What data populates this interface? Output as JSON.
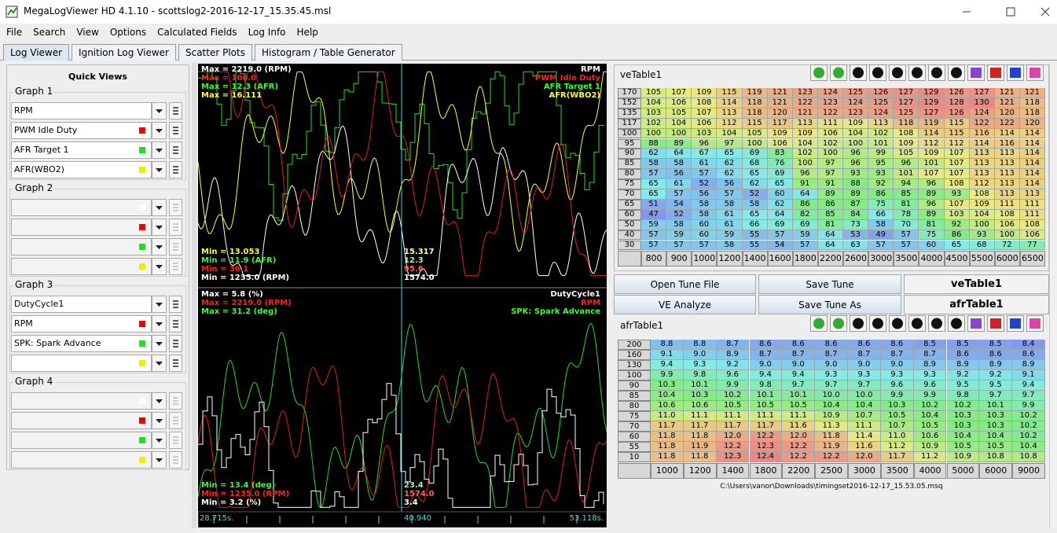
{
  "window": {
    "title": "MegaLogViewer HD 4.1.10 - scottslog2-2016-12-17_15.35.45.msl"
  },
  "menu": [
    "File",
    "Search",
    "View",
    "Options",
    "Calculated Fields",
    "Log Info",
    "Help"
  ],
  "tabs": [
    "Log Viewer",
    "Ignition Log Viewer",
    "Scatter Plots",
    "Histogram / Table Generator"
  ],
  "quick_views": {
    "title": "Quick Views",
    "groups": [
      {
        "title": "Graph 1",
        "fields": [
          "RPM",
          "PWM Idle Duty",
          "AFR Target 1",
          "AFR(WBO2)"
        ]
      },
      {
        "title": "Graph 2",
        "fields": []
      },
      {
        "title": "Graph 3",
        "fields": [
          "DutyCycle1",
          "RPM",
          "SPK: Spark Advance"
        ]
      },
      {
        "title": "Graph 4",
        "fields": []
      }
    ]
  },
  "graphs": [
    {
      "max": [
        {
          "text": "Max = 2219.0 (RPM)",
          "color": "#ffffff"
        },
        {
          "text": "Max = 100.0",
          "color": "#ff2020"
        },
        {
          "text": "Max = 12.3 (AFR)",
          "color": "#33ff33"
        },
        {
          "text": "Max = 16.111",
          "color": "#ffff33"
        }
      ],
      "legend": [
        {
          "text": "RPM",
          "color": "#ffffff"
        },
        {
          "text": "PWM Idle Duty",
          "color": "#ff2020"
        },
        {
          "text": "AFR Target 1",
          "color": "#33ff33"
        },
        {
          "text": "AFR(WBO2)",
          "color": "#ffff33"
        }
      ],
      "min": [
        {
          "text": "Min = 13.053",
          "color": "#ffff33"
        },
        {
          "text": "Min = 11.9 (AFR)",
          "color": "#33ff33"
        },
        {
          "text": "Min = 36.1",
          "color": "#ff2020"
        },
        {
          "text": "Min = 1235.0 (RPM)",
          "color": "#ffffff"
        }
      ],
      "cursor": [
        {
          "text": "15.317",
          "color": "#ffff99"
        },
        {
          "text": "12.3",
          "color": "#99ff99"
        },
        {
          "text": "95.6",
          "color": "#ff6060"
        },
        {
          "text": "1574.0",
          "color": "#ffffff"
        }
      ]
    },
    {
      "max": [
        {
          "text": "Max = 5.8 (%)",
          "color": "#ffffff"
        },
        {
          "text": "Max = 2219.0 (RPM)",
          "color": "#ff2020"
        },
        {
          "text": "Max = 31.2 (deg)",
          "color": "#33ff33"
        }
      ],
      "legend": [
        {
          "text": "DutyCycle1",
          "color": "#ffffff"
        },
        {
          "text": "RPM",
          "color": "#ff2020"
        },
        {
          "text": "SPK: Spark Advance",
          "color": "#33ff33"
        }
      ],
      "min": [
        {
          "text": "Min = 13.4 (deg)",
          "color": "#33ff33"
        },
        {
          "text": "Min = 1235.0 (RPM)",
          "color": "#ff2020"
        },
        {
          "text": "Min = 3.2 (%)",
          "color": "#ffffff"
        }
      ],
      "cursor": [
        {
          "text": "23.4",
          "color": "#99ff99"
        },
        {
          "text": "1574.0",
          "color": "#ff6060"
        },
        {
          "text": "3.4",
          "color": "#ffffff"
        }
      ]
    }
  ],
  "time_axis": {
    "start": "28.715s.",
    "cursor": "40.940",
    "end": "53.118s."
  },
  "ve_table": {
    "title": "veTable1",
    "columns": [
      800,
      900,
      1000,
      1200,
      1400,
      1600,
      1800,
      2200,
      2600,
      3000,
      3500,
      4000,
      4500,
      5500,
      6000,
      6500
    ],
    "rows": [
      {
        "load": 170,
        "values": [
          105,
          107,
          109,
          115,
          119,
          121,
          123,
          124,
          125,
          126,
          127,
          129,
          126,
          127,
          121,
          121
        ]
      },
      {
        "load": 152,
        "values": [
          104,
          106,
          108,
          114,
          118,
          121,
          122,
          123,
          124,
          125,
          127,
          129,
          128,
          130,
          121,
          118
        ]
      },
      {
        "load": 135,
        "values": [
          103,
          105,
          107,
          113,
          118,
          120,
          121,
          122,
          123,
          124,
          125,
          127,
          126,
          124,
          120,
          118
        ]
      },
      {
        "load": 117,
        "values": [
          102,
          104,
          106,
          112,
          115,
          117,
          113,
          111,
          109,
          113,
          118,
          119,
          115,
          122,
          122,
          120
        ]
      },
      {
        "load": 100,
        "values": [
          100,
          100,
          103,
          104,
          105,
          109,
          109,
          106,
          104,
          102,
          108,
          114,
          115,
          116,
          114,
          114
        ]
      },
      {
        "load": 95,
        "values": [
          88,
          89,
          96,
          97,
          100,
          106,
          104,
          102,
          100,
          101,
          109,
          112,
          112,
          114,
          116,
          114
        ]
      },
      {
        "load": 90,
        "values": [
          62,
          64,
          67,
          65,
          69,
          83,
          102,
          100,
          96,
          99,
          105,
          109,
          107,
          113,
          113,
          114
        ]
      },
      {
        "load": 85,
        "values": [
          58,
          58,
          61,
          62,
          68,
          76,
          100,
          97,
          96,
          95,
          96,
          101,
          107,
          113,
          113,
          114
        ]
      },
      {
        "load": 80,
        "values": [
          57,
          56,
          57,
          62,
          65,
          69,
          96,
          97,
          93,
          93,
          101,
          107,
          107,
          113,
          113,
          114
        ]
      },
      {
        "load": 75,
        "values": [
          65,
          61,
          52,
          56,
          62,
          65,
          91,
          91,
          88,
          92,
          94,
          96,
          108,
          112,
          113,
          114
        ]
      },
      {
        "load": 70,
        "values": [
          65,
          57,
          56,
          57,
          52,
          60,
          64,
          89,
          89,
          86,
          85,
          89,
          93,
          108,
          113,
          113
        ]
      },
      {
        "load": 65,
        "values": [
          51,
          54,
          58,
          58,
          58,
          62,
          86,
          86,
          87,
          75,
          81,
          96,
          107,
          109,
          111,
          111
        ]
      },
      {
        "load": 60,
        "values": [
          47,
          52,
          58,
          61,
          65,
          64,
          82,
          85,
          84,
          66,
          78,
          89,
          103,
          104,
          108,
          111
        ]
      },
      {
        "load": 50,
        "values": [
          59,
          58,
          60,
          61,
          66,
          69,
          69,
          81,
          73,
          58,
          70,
          81,
          92,
          100,
          106,
          108
        ]
      },
      {
        "load": 40,
        "values": [
          57,
          59,
          60,
          59,
          55,
          57,
          59,
          64,
          53,
          49,
          57,
          75,
          86,
          93,
          100,
          106
        ]
      },
      {
        "load": 30,
        "values": [
          57,
          57,
          57,
          58,
          55,
          54,
          57,
          64,
          63,
          57,
          57,
          60,
          65,
          68,
          72,
          77
        ]
      }
    ]
  },
  "buttons": [
    "Open Tune File",
    "Save Tune",
    "veTable1",
    "VE Analyze",
    "Save Tune As",
    "afrTable1"
  ],
  "afr_table": {
    "title": "afrTable1",
    "columns": [
      1000,
      1200,
      1400,
      1800,
      2200,
      2500,
      3000,
      3500,
      4000,
      5000,
      6000,
      9000
    ],
    "rows": [
      {
        "load": 200,
        "values": [
          "8.8",
          "8.8",
          "8.7",
          "8.6",
          "8.6",
          "8.6",
          "8.6",
          "8.6",
          "8.5",
          "8.5",
          "8.5",
          "8.4"
        ]
      },
      {
        "load": 160,
        "values": [
          "9.1",
          "9.0",
          "8.9",
          "8.7",
          "8.7",
          "8.7",
          "8.7",
          "8.7",
          "8.7",
          "8.6",
          "8.6",
          "8.6"
        ]
      },
      {
        "load": 130,
        "values": [
          "9.4",
          "9.3",
          "9.2",
          "9.0",
          "9.0",
          "9.0",
          "9.0",
          "9.0",
          "8.9",
          "8.9",
          "8.9",
          "8.9"
        ]
      },
      {
        "load": 100,
        "values": [
          "9.9",
          "9.8",
          "9.6",
          "9.4",
          "9.4",
          "9.3",
          "9.3",
          "9.3",
          "9.3",
          "9.2",
          "9.2",
          "9.1"
        ]
      },
      {
        "load": 90,
        "values": [
          "10.3",
          "10.1",
          "9.9",
          "9.8",
          "9.7",
          "9.7",
          "9.7",
          "9.6",
          "9.6",
          "9.5",
          "9.5",
          "9.4"
        ]
      },
      {
        "load": 85,
        "values": [
          "10.4",
          "10.3",
          "10.2",
          "10.1",
          "10.1",
          "10.0",
          "10.0",
          "9.9",
          "9.9",
          "9.8",
          "9.7",
          "9.7"
        ]
      },
      {
        "load": 80,
        "values": [
          "10.6",
          "10.6",
          "10.5",
          "10.5",
          "10.5",
          "10.4",
          "10.4",
          "10.3",
          "10.2",
          "10.2",
          "10.1",
          "9.9"
        ]
      },
      {
        "load": 75,
        "values": [
          "11.0",
          "11.1",
          "11.1",
          "11.1",
          "11.1",
          "10.9",
          "10.7",
          "10.5",
          "10.4",
          "10.3",
          "10.3",
          "10.2"
        ]
      },
      {
        "load": 70,
        "values": [
          "11.7",
          "11.7",
          "11.7",
          "11.7",
          "11.6",
          "11.3",
          "11.1",
          "10.7",
          "10.5",
          "10.3",
          "10.3",
          "10.2"
        ]
      },
      {
        "load": 60,
        "values": [
          "11.8",
          "11.8",
          "12.0",
          "12.2",
          "12.0",
          "11.8",
          "11.4",
          "11.0",
          "10.6",
          "10.4",
          "10.4",
          "10.2"
        ]
      },
      {
        "load": 55,
        "values": [
          "11.8",
          "11.9",
          "12.2",
          "12.3",
          "12.2",
          "11.9",
          "11.6",
          "11.2",
          "10.9",
          "10.5",
          "10.5",
          "10.4"
        ]
      },
      {
        "load": 10,
        "values": [
          "11.8",
          "11.8",
          "12.3",
          "12.4",
          "12.2",
          "12.2",
          "12.0",
          "11.7",
          "11.2",
          "10.9",
          "10.8",
          "10.8"
        ]
      }
    ]
  },
  "file_path": "C:\\Users\\vanor\\Downloads\\timingset2016-12-17_15.53.05.msq"
}
